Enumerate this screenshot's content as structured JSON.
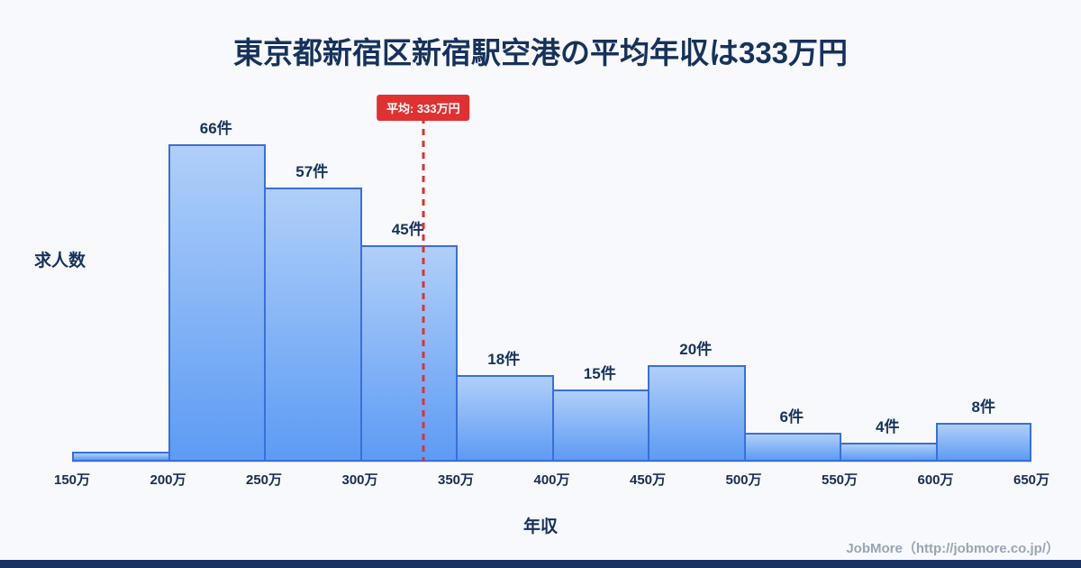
{
  "title": "東京都新宿区新宿駅空港の平均年収は333万円",
  "footer": "JobMore（http://jobmore.co.jp/）",
  "colors": {
    "background": "#f7f9fd",
    "title_text": "#16325c",
    "bar_fill_top": "#b0cff9",
    "bar_fill_bottom": "#5d9bf4",
    "bar_border": "#3a6fd8",
    "average_accent": "#e03131",
    "footer_text": "#9aa4b8",
    "bottom_bar": "#1a3263"
  },
  "chart_data": {
    "type": "bar",
    "title": "東京都新宿区新宿駅空港の平均年収は333万円",
    "xlabel": "年収",
    "ylabel": "求人数",
    "x_tick_labels": [
      "150万",
      "200万",
      "250万",
      "300万",
      "350万",
      "400万",
      "450万",
      "500万",
      "550万",
      "600万",
      "650万"
    ],
    "bin_ranges_man_yen": [
      [
        150,
        200
      ],
      [
        200,
        250
      ],
      [
        250,
        300
      ],
      [
        300,
        350
      ],
      [
        350,
        400
      ],
      [
        400,
        450
      ],
      [
        450,
        500
      ],
      [
        500,
        550
      ],
      [
        550,
        600
      ],
      [
        600,
        650
      ]
    ],
    "values": [
      2,
      66,
      57,
      45,
      18,
      15,
      20,
      6,
      4,
      8
    ],
    "bar_labels": [
      "",
      "66件",
      "57件",
      "45件",
      "18件",
      "15件",
      "20件",
      "6件",
      "4件",
      "8件"
    ],
    "unit": "件",
    "x_range": [
      150,
      650
    ],
    "ylim": [
      0,
      70
    ],
    "average": 333,
    "average_label": "平均: 333万円",
    "legend": "none",
    "grid": false
  }
}
